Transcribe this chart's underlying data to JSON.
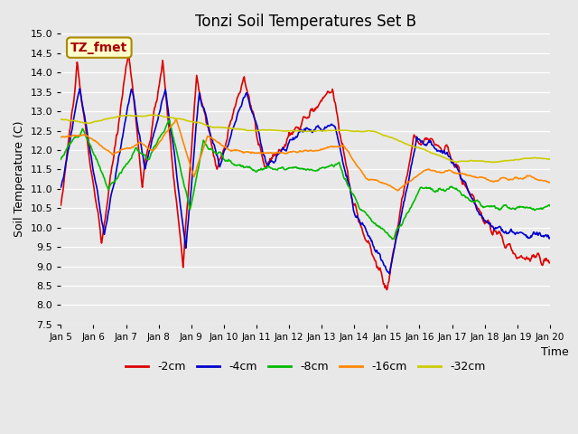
{
  "title": "Tonzi Soil Temperatures Set B",
  "xlabel": "Time",
  "ylabel": "Soil Temperature (C)",
  "ylim": [
    7.5,
    15.0
  ],
  "yticks": [
    7.5,
    8.0,
    8.5,
    9.0,
    9.5,
    10.0,
    10.5,
    11.0,
    11.5,
    12.0,
    12.5,
    13.0,
    13.5,
    14.0,
    14.5,
    15.0
  ],
  "xtick_labels": [
    "Jan 5",
    "Jan 6",
    "Jan 7",
    "Jan 8",
    "Jan 9",
    "Jan 10",
    "Jan 11",
    "Jan 12",
    "Jan 13",
    "Jan 14",
    "Jan 15",
    "Jan 16",
    "Jan 17",
    "Jan 18",
    "Jan 19",
    "Jan 20"
  ],
  "xtick_positions": [
    0,
    24,
    48,
    72,
    96,
    120,
    144,
    168,
    192,
    216,
    240,
    264,
    288,
    312,
    336,
    360
  ],
  "legend_labels": [
    "-2cm",
    "-4cm",
    "-8cm",
    "-16cm",
    "-32cm"
  ],
  "legend_colors": [
    "#dd0000",
    "#0000cc",
    "#00bb00",
    "#ff8800",
    "#cccc00"
  ],
  "line_width": 1.2,
  "annotation_text": "TZ_fmet",
  "annotation_bbox_facecolor": "#ffffcc",
  "annotation_bbox_edgecolor": "#aa8800",
  "annotation_text_color": "#aa0000",
  "bg_color": "#e8e8e8",
  "title_fontsize": 12,
  "n_points": 721
}
